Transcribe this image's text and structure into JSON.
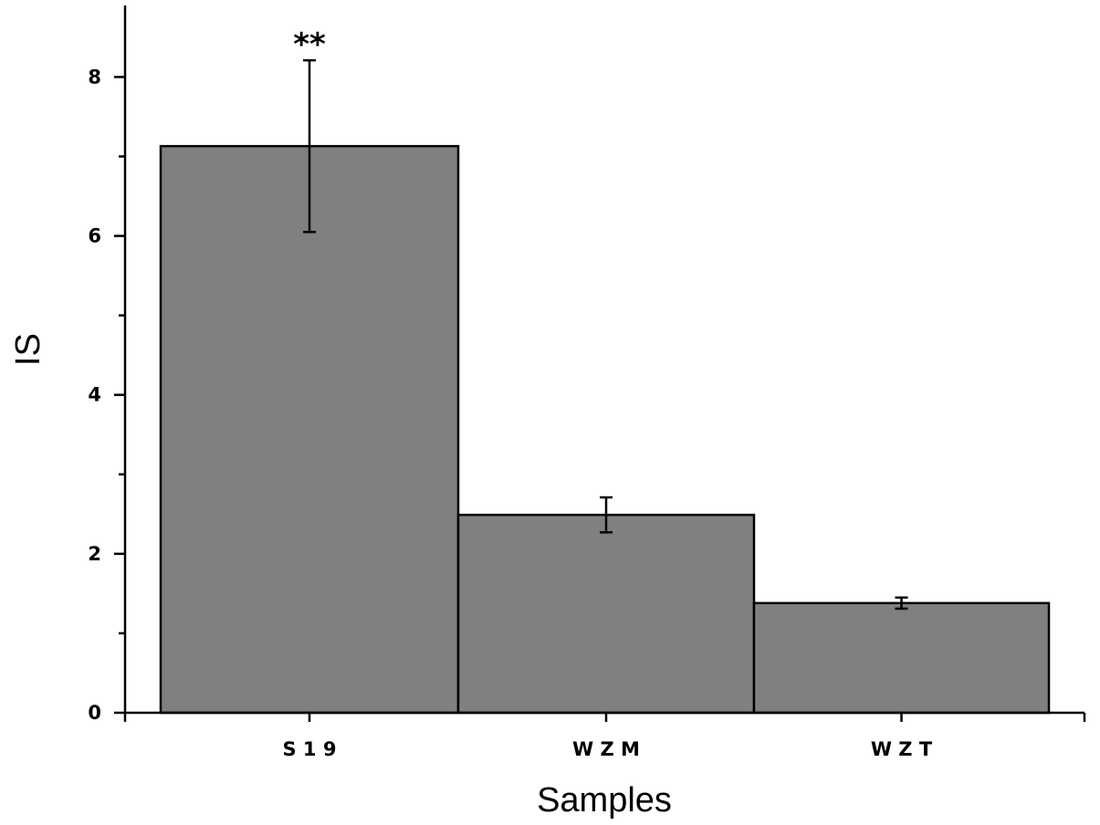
{
  "chart_data": {
    "type": "bar",
    "categories": [
      "S19",
      "WZM",
      "WZT"
    ],
    "category_labels": [
      "S 1 9",
      "W Z M",
      "W Z T"
    ],
    "values": [
      7.13,
      2.49,
      1.38
    ],
    "errors": [
      1.08,
      0.22,
      0.07
    ],
    "annotations": [
      {
        "category": "S19",
        "text": "**"
      }
    ],
    "xlabel": "Samples",
    "ylabel": "IS",
    "ylim": [
      0,
      8.9
    ],
    "yticks": [
      0,
      2,
      4,
      6,
      8
    ],
    "grid": false,
    "legend": "none",
    "bar_color": "#808080",
    "edge_color": "#000000"
  }
}
